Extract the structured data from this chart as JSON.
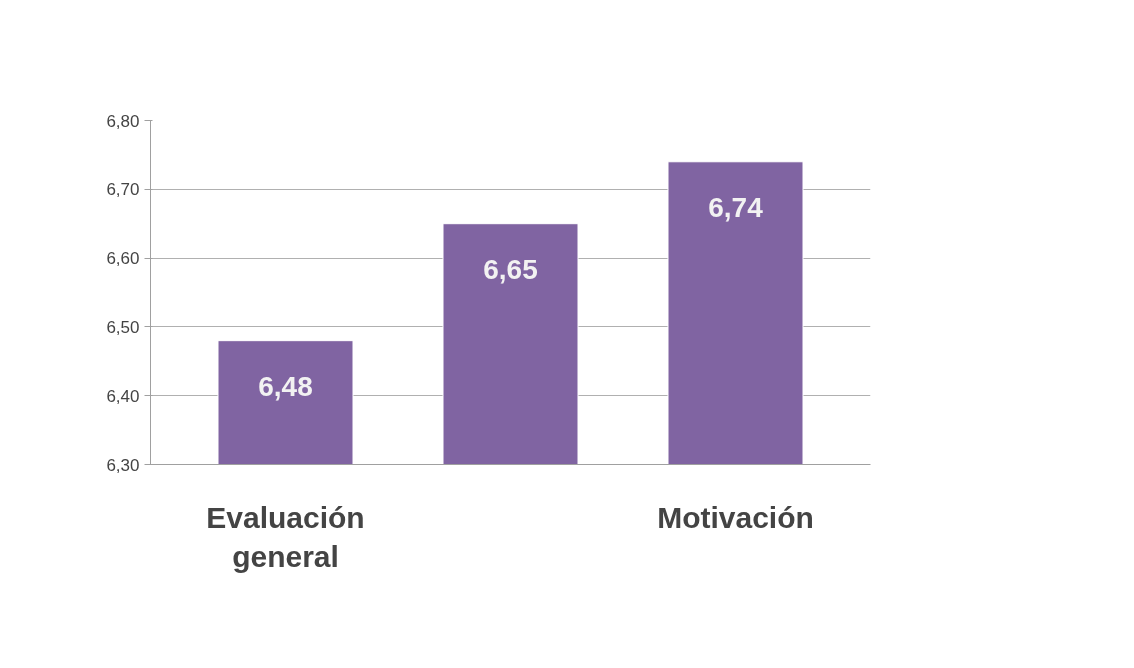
{
  "chart_data": {
    "type": "bar",
    "categories": [
      "Evaluación general",
      null,
      "Motivación"
    ],
    "values": [
      6.48,
      6.65,
      6.74
    ],
    "color": "#8064a2",
    "value_labels": [
      "6,48",
      "6,65",
      "6,74"
    ],
    "ylim": [
      6.3,
      6.8
    ],
    "yticks": [
      {
        "value": 6.3,
        "label": "6,30"
      },
      {
        "value": 6.4,
        "label": "6,40"
      },
      {
        "value": 6.5,
        "label": "6,50"
      },
      {
        "value": 6.6,
        "label": "6,60"
      },
      {
        "value": 6.7,
        "label": "6,70"
      },
      {
        "value": 6.8,
        "label": "6,80"
      }
    ],
    "grid": "y"
  }
}
